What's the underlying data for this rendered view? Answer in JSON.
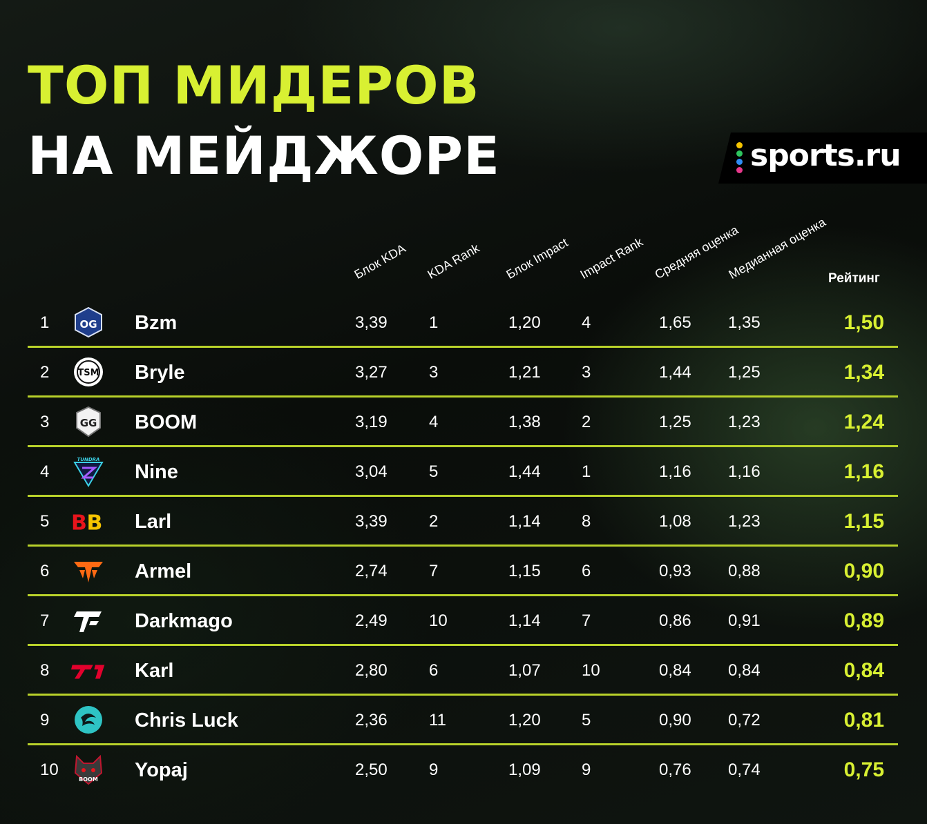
{
  "header": {
    "title_line1": "ТОП МИДЕРОВ",
    "title_line2": "НА МЕЙДЖОРЕ"
  },
  "brand": {
    "name": "sports.ru",
    "dot_colors": [
      "#f5c400",
      "#2ec45e",
      "#2f8df5",
      "#e8398c"
    ]
  },
  "accent_color": "#d8f032",
  "separator_color": "#b9d22a",
  "columns": {
    "kda_block": "Блок KDA",
    "kda_rank": "KDA Rank",
    "impact_block": "Блок Impact",
    "impact_rank": "Impact Rank",
    "avg_score": "Средняя оценка",
    "median_score": "Медианная оценка",
    "rating": "Рейтинг"
  },
  "players": [
    {
      "rank": "1",
      "team_icon": "og-logo-icon",
      "name": "Bzm",
      "kda": "3,39",
      "kda_rank": "1",
      "impact": "1,20",
      "impact_rank": "4",
      "avg": "1,65",
      "median": "1,35",
      "rating": "1,50"
    },
    {
      "rank": "2",
      "team_icon": "tsm-logo-icon",
      "name": "Bryle",
      "kda": "3,27",
      "kda_rank": "3",
      "impact": "1,21",
      "impact_rank": "3",
      "avg": "1,44",
      "median": "1,25",
      "rating": "1,34"
    },
    {
      "rank": "3",
      "team_icon": "gaimin-gladiators-logo-icon",
      "name": "BOOM",
      "kda": "3,19",
      "kda_rank": "4",
      "impact": "1,38",
      "impact_rank": "2",
      "avg": "1,25",
      "median": "1,23",
      "rating": "1,24"
    },
    {
      "rank": "4",
      "team_icon": "tundra-logo-icon",
      "name": "Nine",
      "kda": "3,04",
      "kda_rank": "5",
      "impact": "1,44",
      "impact_rank": "1",
      "avg": "1,16",
      "median": "1,16",
      "rating": "1,16"
    },
    {
      "rank": "5",
      "team_icon": "betboom-logo-icon",
      "name": "Larl",
      "kda": "3,39",
      "kda_rank": "2",
      "impact": "1,14",
      "impact_rank": "8",
      "avg": "1,08",
      "median": "1,23",
      "rating": "1,15"
    },
    {
      "rank": "6",
      "team_icon": "fnatic-logo-icon",
      "name": "Armel",
      "kda": "2,74",
      "kda_rank": "7",
      "impact": "1,15",
      "impact_rank": "6",
      "avg": "0,93",
      "median": "0,88",
      "rating": "0,90"
    },
    {
      "rank": "7",
      "team_icon": "thunder-logo-icon",
      "name": "Darkmago",
      "kda": "2,49",
      "kda_rank": "10",
      "impact": "1,14",
      "impact_rank": "7",
      "avg": "0,86",
      "median": "0,91",
      "rating": "0,89"
    },
    {
      "rank": "8",
      "team_icon": "t1-logo-icon",
      "name": "Karl",
      "kda": "2,80",
      "kda_rank": "6",
      "impact": "1,07",
      "impact_rank": "10",
      "avg": "0,84",
      "median": "0,84",
      "rating": "0,84"
    },
    {
      "rank": "9",
      "team_icon": "beastcoast-logo-icon",
      "name": "Chris Luck",
      "kda": "2,36",
      "kda_rank": "11",
      "impact": "1,20",
      "impact_rank": "5",
      "avg": "0,90",
      "median": "0,72",
      "rating": "0,81"
    },
    {
      "rank": "10",
      "team_icon": "boom-esports-logo-icon",
      "name": "Yopaj",
      "kda": "2,50",
      "kda_rank": "9",
      "impact": "1,09",
      "impact_rank": "9",
      "avg": "0,76",
      "median": "0,74",
      "rating": "0,75"
    }
  ]
}
